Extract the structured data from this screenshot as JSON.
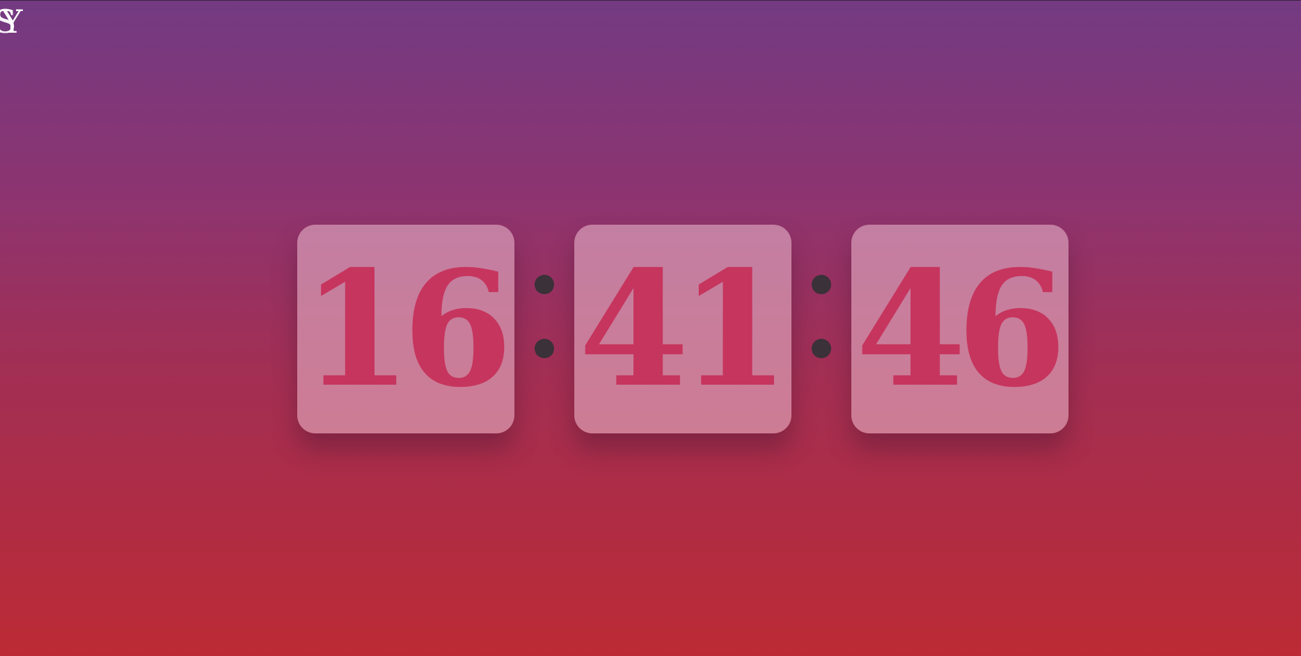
{
  "logo": {
    "glyph_back": "S",
    "glyph_front": "Y"
  },
  "clock": {
    "hours": "16",
    "minutes": "41",
    "seconds": "46"
  },
  "colors": {
    "background_top": "#733a82",
    "background_bottom": "#bc2b35",
    "digit": "#c6355e",
    "separator_dot": "#3b3138"
  }
}
